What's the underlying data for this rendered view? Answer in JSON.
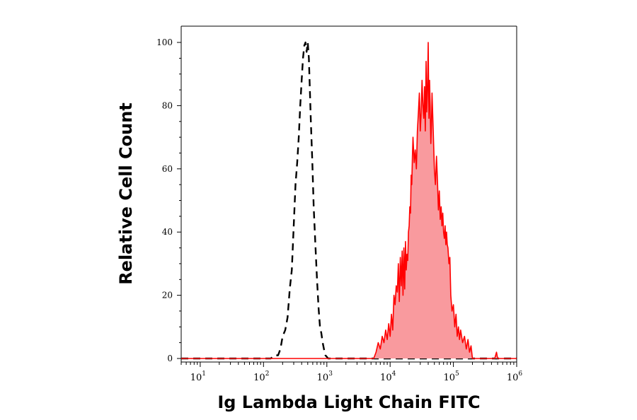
{
  "chart_data": {
    "type": "area",
    "xlabel": "Ig Lambda Light Chain FITC",
    "ylabel": "Relative Cell Count",
    "x_scale": "log",
    "xlim": [
      5,
      1000000
    ],
    "ylim": [
      0,
      100
    ],
    "x_ticks": [
      {
        "base": "10",
        "exp": "1",
        "value": 10
      },
      {
        "base": "10",
        "exp": "2",
        "value": 100
      },
      {
        "base": "10",
        "exp": "3",
        "value": 1000
      },
      {
        "base": "10",
        "exp": "4",
        "value": 10000
      },
      {
        "base": "10",
        "exp": "5",
        "value": 100000
      },
      {
        "base": "10",
        "exp": "6",
        "value": 1000000
      }
    ],
    "y_ticks": [
      "0",
      "20",
      "40",
      "60",
      "80",
      "100"
    ],
    "grid": false,
    "legend": "none",
    "series": [
      {
        "style": "dashed",
        "color": "#000000",
        "x": [
          5,
          130,
          150,
          170,
          185,
          200,
          220,
          240,
          260,
          280,
          300,
          320,
          340,
          360,
          380,
          400,
          420,
          440,
          460,
          480,
          500,
          520,
          540,
          560,
          590,
          620,
          660,
          700,
          740,
          780,
          820,
          860,
          900,
          950,
          1000,
          1050,
          1100,
          1000000
        ],
        "y": [
          0,
          0,
          1,
          1,
          3,
          7,
          9,
          13,
          22,
          28,
          42,
          55,
          62,
          70,
          80,
          88,
          95,
          99,
          100,
          97,
          100,
          95,
          85,
          75,
          62,
          48,
          36,
          25,
          16,
          10,
          8,
          5,
          3,
          1,
          0.5,
          0,
          0,
          0
        ]
      },
      {
        "style": "filled",
        "color": "#ff0000",
        "fill": "#f99a9e",
        "x": [
          5,
          5500,
          6000,
          6500,
          7000,
          7500,
          8000,
          8500,
          9000,
          9500,
          10000,
          10500,
          11000,
          11500,
          12000,
          12500,
          13000,
          13500,
          14000,
          14500,
          15000,
          15500,
          16000,
          16500,
          17000,
          17500,
          18000,
          18500,
          19000,
          19500,
          20000,
          20500,
          21000,
          21500,
          22000,
          22500,
          23000,
          24000,
          25000,
          26000,
          27000,
          28000,
          29000,
          30000,
          31000,
          32000,
          33000,
          34000,
          35000,
          36000,
          37000,
          38000,
          39000,
          40000,
          41000,
          42000,
          43000,
          44000,
          45000,
          46000,
          48000,
          50000,
          52000,
          54000,
          56000,
          58000,
          60000,
          62000,
          64000,
          66000,
          68000,
          70000,
          72000,
          74000,
          76000,
          78000,
          80000,
          82000,
          85000,
          88000,
          91000,
          95000,
          100000,
          105000,
          110000,
          115000,
          120000,
          125000,
          130000,
          140000,
          150000,
          160000,
          170000,
          180000,
          190000,
          200000,
          250000,
          350000,
          450000,
          480000,
          500000,
          520000,
          550000,
          1000000
        ],
        "y": [
          0,
          0,
          2,
          5,
          3,
          7,
          5,
          9,
          6,
          11,
          7,
          14,
          9,
          20,
          17,
          23,
          21,
          30,
          18,
          32,
          23,
          34,
          20,
          35,
          22,
          37,
          28,
          33,
          31,
          40,
          42,
          48,
          46,
          58,
          55,
          64,
          70,
          62,
          66,
          60,
          72,
          78,
          84,
          72,
          78,
          88,
          80,
          76,
          86,
          72,
          94,
          78,
          85,
          100,
          76,
          88,
          80,
          68,
          74,
          84,
          72,
          60,
          55,
          64,
          56,
          47,
          53,
          44,
          48,
          42,
          46,
          40,
          38,
          42,
          36,
          40,
          36,
          35,
          30,
          32,
          20,
          15,
          17,
          10,
          14,
          7,
          10,
          6,
          9,
          5,
          7,
          3,
          6,
          2,
          4,
          0,
          0,
          0,
          0,
          2,
          0,
          0,
          0,
          0
        ]
      }
    ]
  }
}
